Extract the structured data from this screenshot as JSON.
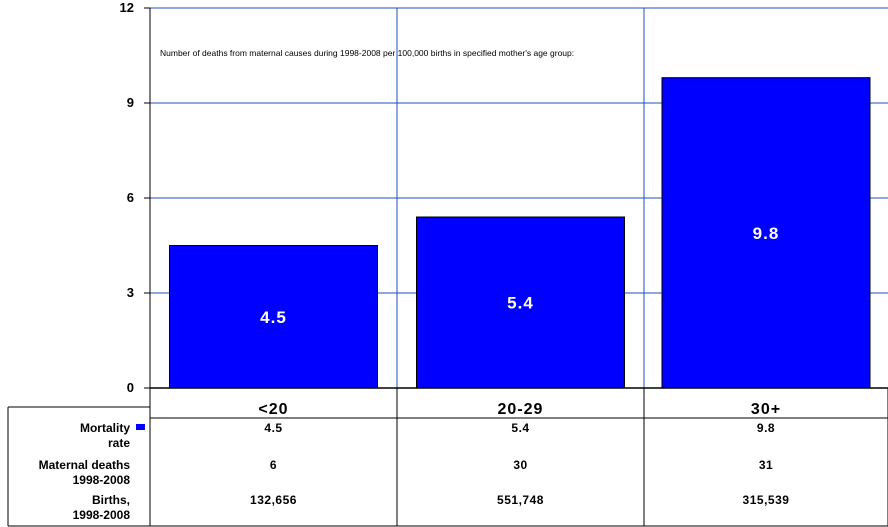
{
  "chart_data": {
    "type": "bar",
    "categories": [
      "<20",
      "20-29",
      "30+"
    ],
    "values": [
      4.5,
      5.4,
      9.8
    ],
    "data_labels": [
      "4.5",
      "5.4",
      "9.8"
    ],
    "ylim": [
      0,
      12
    ],
    "yticks": [
      0,
      3,
      6,
      9,
      12
    ],
    "ytick_labels": [
      "0",
      "3",
      "6",
      "9",
      "12"
    ],
    "annotation": "Number of deaths from maternal causes during 1998-2008 per 100,000 births in specified mother's age group:",
    "grid": true,
    "bar_color": "#0000ff",
    "grid_color": "#1f4fbf",
    "series": [
      {
        "name": "Mortality rate",
        "values": [
          4.5,
          5.4,
          9.8
        ]
      }
    ],
    "table": {
      "rows": [
        {
          "label_line1": "Mortality",
          "label_line2": "rate",
          "has_legend_key": true,
          "cells": [
            "4.5",
            "5.4",
            "9.8"
          ]
        },
        {
          "label_line1": "Maternal deaths",
          "label_line2": "1998-2008",
          "has_legend_key": false,
          "cells": [
            "6",
            "30",
            "31"
          ]
        },
        {
          "label_line1": "Births,",
          "label_line2": "1998-2008",
          "has_legend_key": false,
          "cells": [
            "132,656",
            "551,748",
            "315,539"
          ]
        }
      ]
    }
  }
}
